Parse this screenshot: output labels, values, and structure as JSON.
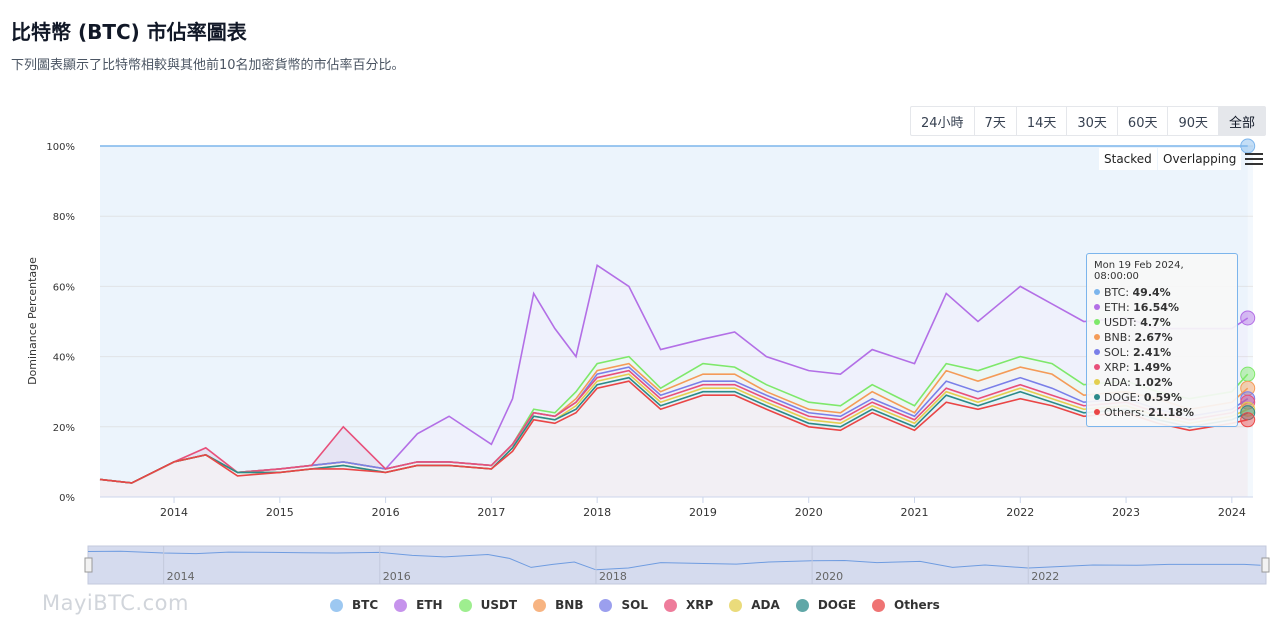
{
  "header": {
    "title": "比特幣 (BTC) 市佔率圖表",
    "subtitle": "下列圖表顯示了比特幣相較與其他前10名加密貨幣的市佔率百分比。"
  },
  "range_buttons": [
    {
      "label": "24小時",
      "active": false
    },
    {
      "label": "7天",
      "active": false
    },
    {
      "label": "14天",
      "active": false
    },
    {
      "label": "30天",
      "active": false
    },
    {
      "label": "60天",
      "active": false
    },
    {
      "label": "90天",
      "active": false
    },
    {
      "label": "全部",
      "active": true
    }
  ],
  "modes": {
    "stacked": "Stacked",
    "overlapping": "Overlapping"
  },
  "menu_icon": "hamburger-menu-icon",
  "tooltip": {
    "date": "Mon 19 Feb 2024, 08:00:00",
    "rows": [
      {
        "name": "BTC",
        "value": "49.4%"
      },
      {
        "name": "ETH",
        "value": "16.54%"
      },
      {
        "name": "USDT",
        "value": "4.7%"
      },
      {
        "name": "BNB",
        "value": "2.67%"
      },
      {
        "name": "SOL",
        "value": "2.41%"
      },
      {
        "name": "XRP",
        "value": "1.49%"
      },
      {
        "name": "ADA",
        "value": "1.02%"
      },
      {
        "name": "DOGE",
        "value": "0.59%"
      },
      {
        "name": "Others",
        "value": "21.18%"
      }
    ]
  },
  "watermark": "MayiBTC.com",
  "chart_data": {
    "type": "area",
    "mode": "stacked",
    "ylabel": "Dominance Percentage",
    "ylim": [
      0,
      100
    ],
    "yticks": [
      "0%",
      "20%",
      "40%",
      "60%",
      "80%",
      "100%"
    ],
    "xlim": [
      2013.3,
      2024.2
    ],
    "xticks": [
      "2014",
      "2015",
      "2016",
      "2017",
      "2018",
      "2019",
      "2020",
      "2021",
      "2022",
      "2023",
      "2024"
    ],
    "navigator_ticks": [
      "2014",
      "2016",
      "2018",
      "2020",
      "2022"
    ],
    "legend_position": "bottom",
    "colors": {
      "BTC": "#7cb5ec",
      "ETH": "#b36fe6",
      "USDT": "#7ee86a",
      "BNB": "#f49b58",
      "SOL": "#7a7fe8",
      "XRP": "#e8507a",
      "ADA": "#e3cf4f",
      "DOGE": "#2b8a8a",
      "Others": "#ea4545"
    },
    "x": [
      2013.3,
      2013.6,
      2014.0,
      2014.3,
      2014.6,
      2015.0,
      2015.3,
      2015.6,
      2016.0,
      2016.3,
      2016.6,
      2017.0,
      2017.2,
      2017.4,
      2017.6,
      2017.8,
      2018.0,
      2018.3,
      2018.6,
      2019.0,
      2019.3,
      2019.6,
      2020.0,
      2020.3,
      2020.6,
      2021.0,
      2021.3,
      2021.6,
      2022.0,
      2022.3,
      2022.6,
      2023.0,
      2023.3,
      2023.6,
      2024.0,
      2024.15
    ],
    "series": [
      {
        "name": "BTC",
        "values": [
          100,
          100,
          100,
          100,
          100,
          100,
          100,
          100,
          100,
          100,
          100,
          100,
          100,
          100,
          100,
          100,
          100,
          100,
          100,
          100,
          100,
          100,
          100,
          100,
          100,
          100,
          100,
          100,
          100,
          100,
          100,
          100,
          100,
          100,
          100,
          100
        ]
      },
      {
        "name": "ETH",
        "values": [
          5,
          4,
          10,
          12,
          7,
          8,
          9,
          10,
          8,
          18,
          23,
          15,
          28,
          58,
          48,
          40,
          66,
          60,
          42,
          45,
          47,
          40,
          36,
          35,
          42,
          38,
          58,
          50,
          60,
          55,
          50,
          51,
          48,
          48,
          48,
          51
        ]
      },
      {
        "name": "USDT",
        "values": [
          5,
          4,
          10,
          12,
          7,
          8,
          9,
          10,
          8,
          10,
          10,
          9,
          15,
          25,
          24,
          30,
          38,
          40,
          31,
          38,
          37,
          32,
          27,
          26,
          32,
          26,
          38,
          36,
          40,
          38,
          32,
          33,
          30,
          28,
          30,
          35
        ]
      },
      {
        "name": "BNB",
        "values": [
          5,
          4,
          10,
          12,
          7,
          8,
          9,
          10,
          8,
          10,
          10,
          9,
          15,
          24,
          23,
          28,
          36,
          38,
          30,
          35,
          35,
          30,
          25,
          24,
          30,
          24,
          36,
          33,
          37,
          35,
          29,
          30,
          28,
          25,
          27,
          31
        ]
      },
      {
        "name": "SOL",
        "values": [
          5,
          4,
          10,
          12,
          7,
          8,
          9,
          10,
          8,
          10,
          10,
          9,
          15,
          24,
          23,
          27,
          35,
          37,
          29,
          33,
          33,
          29,
          24,
          23,
          28,
          23,
          33,
          30,
          34,
          31,
          27,
          28,
          25,
          23,
          25,
          28
        ]
      },
      {
        "name": "XRP",
        "values": [
          5,
          4,
          10,
          14,
          7,
          8,
          9,
          20,
          8,
          10,
          10,
          9,
          15,
          24,
          23,
          27,
          34,
          36,
          28,
          32,
          32,
          28,
          23,
          22,
          27,
          22,
          31,
          28,
          32,
          29,
          26,
          27,
          24,
          22,
          24,
          27
        ]
      },
      {
        "name": "ADA",
        "values": [
          5,
          4,
          10,
          12,
          7,
          7,
          8,
          9,
          7,
          9,
          9,
          8,
          14,
          23,
          22,
          26,
          33,
          35,
          27,
          31,
          31,
          27,
          22,
          21,
          26,
          21,
          30,
          27,
          31,
          28,
          25,
          26,
          23,
          21,
          23,
          25
        ]
      },
      {
        "name": "DOGE",
        "values": [
          5,
          4,
          10,
          12,
          7,
          7,
          8,
          9,
          7,
          9,
          9,
          8,
          14,
          23,
          22,
          25,
          32,
          34,
          26,
          30,
          30,
          26,
          21,
          20,
          25,
          20,
          29,
          26,
          30,
          27,
          24,
          25,
          22,
          20,
          22,
          24
        ]
      },
      {
        "name": "Others",
        "values": [
          5,
          4,
          10,
          12,
          6,
          7,
          8,
          8,
          7,
          9,
          9,
          8,
          13,
          22,
          21,
          24,
          31,
          33,
          25,
          29,
          29,
          25,
          20,
          19,
          24,
          19,
          27,
          25,
          28,
          26,
          23,
          24,
          21,
          19,
          21,
          22
        ]
      }
    ]
  }
}
